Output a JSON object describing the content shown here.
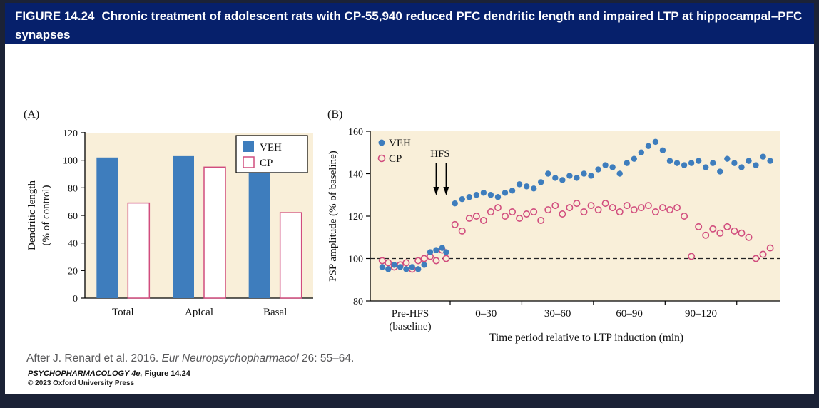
{
  "title_bar": {
    "figure_label": "FIGURE 14.24",
    "title_text": "Chronic treatment of adolescent rats with CP-55,940 reduced PFC dendritic length and impaired LTP at hippocampal–PFC synapses"
  },
  "panels": {
    "a_label": "(A)",
    "b_label": "(B)"
  },
  "caption": {
    "prefix": "After J. Renard et al. 2016. ",
    "journal": "Eur Neuropsychopharmacol",
    "suffix": " 26: 55–64."
  },
  "credit": {
    "book": "PSYCHOPHARMACOLOGY 4e,",
    "figure_ref": " Figure 14.24",
    "copyright": "© 2023 Oxford University Press"
  },
  "colors": {
    "veh": "#3e7dbd",
    "cp": "#d14d7e",
    "plot_bg": "#f9efd9",
    "titlebar_bg": "#06206b",
    "frame_bg": "#1b2236",
    "dashed_line": "#222222"
  },
  "chart_data": [
    {
      "type": "bar",
      "title": "",
      "categories": [
        "Total",
        "Apical",
        "Basal"
      ],
      "series": [
        {
          "name": "VEH",
          "style": "filled",
          "values": [
            102,
            103,
            104
          ]
        },
        {
          "name": "CP",
          "style": "open",
          "values": [
            69,
            95,
            62
          ]
        }
      ],
      "ylabel": [
        "Dendritic length",
        "(% of control)"
      ],
      "ylim": [
        0,
        120
      ],
      "yticks": [
        0,
        20,
        40,
        60,
        80,
        100,
        120
      ],
      "legend_position": "top-right",
      "grid": false
    },
    {
      "type": "scatter",
      "title": "",
      "xlabel": "Time period relative to LTP induction (min)",
      "ylabel": "PSP amplitude (% of baseline)",
      "ylim": [
        80,
        160
      ],
      "yticks": [
        80,
        100,
        120,
        140,
        160
      ],
      "baseline_line": 100,
      "legend_position": "top-left",
      "annotation": {
        "text": "HFS",
        "arrow_ts": [
          -7,
          -2
        ]
      },
      "x_ticks_t": [
        0,
        30,
        60,
        90,
        120
      ],
      "x_sections": [
        {
          "lines": [
            "Pre-HFS",
            "(baseline)"
          ],
          "t": -20
        },
        {
          "lines": [
            "0–30"
          ],
          "t": 15
        },
        {
          "lines": [
            "30–60"
          ],
          "t": 45
        },
        {
          "lines": [
            "60–90"
          ],
          "t": 75
        },
        {
          "lines": [
            "90–120"
          ],
          "t": 105
        }
      ],
      "series": [
        {
          "name": "VEH",
          "marker": "filled-circle",
          "points": [
            [
              -34,
              96
            ],
            [
              -31,
              95
            ],
            [
              -28,
              97
            ],
            [
              -25,
              96
            ],
            [
              -22,
              95
            ],
            [
              -19,
              96
            ],
            [
              -16,
              95
            ],
            [
              -13,
              97
            ],
            [
              -10,
              103
            ],
            [
              -7,
              104
            ],
            [
              -4,
              105
            ],
            [
              -2,
              103
            ],
            [
              2,
              126
            ],
            [
              5,
              128
            ],
            [
              8,
              129
            ],
            [
              11,
              130
            ],
            [
              14,
              131
            ],
            [
              17,
              130
            ],
            [
              20,
              129
            ],
            [
              23,
              131
            ],
            [
              26,
              132
            ],
            [
              29,
              135
            ],
            [
              32,
              134
            ],
            [
              35,
              133
            ],
            [
              38,
              136
            ],
            [
              41,
              140
            ],
            [
              44,
              138
            ],
            [
              47,
              137
            ],
            [
              50,
              139
            ],
            [
              53,
              138
            ],
            [
              56,
              140
            ],
            [
              59,
              139
            ],
            [
              62,
              142
            ],
            [
              65,
              144
            ],
            [
              68,
              143
            ],
            [
              71,
              140
            ],
            [
              74,
              145
            ],
            [
              77,
              147
            ],
            [
              80,
              150
            ],
            [
              83,
              153
            ],
            [
              86,
              155
            ],
            [
              89,
              151
            ],
            [
              92,
              146
            ],
            [
              95,
              145
            ],
            [
              98,
              144
            ],
            [
              101,
              145
            ],
            [
              104,
              146
            ],
            [
              107,
              143
            ],
            [
              110,
              145
            ],
            [
              113,
              141
            ],
            [
              116,
              147
            ],
            [
              119,
              145
            ],
            [
              122,
              143
            ],
            [
              125,
              146
            ],
            [
              128,
              144
            ],
            [
              131,
              148
            ],
            [
              134,
              146
            ]
          ]
        },
        {
          "name": "CP",
          "marker": "open-circle",
          "points": [
            [
              -34,
              99
            ],
            [
              -31,
              98
            ],
            [
              -28,
              96
            ],
            [
              -25,
              97
            ],
            [
              -22,
              98
            ],
            [
              -19,
              95
            ],
            [
              -16,
              99
            ],
            [
              -13,
              100
            ],
            [
              -10,
              101
            ],
            [
              -7,
              99
            ],
            [
              -4,
              104
            ],
            [
              -2,
              100
            ],
            [
              2,
              116
            ],
            [
              5,
              113
            ],
            [
              8,
              119
            ],
            [
              11,
              120
            ],
            [
              14,
              118
            ],
            [
              17,
              122
            ],
            [
              20,
              124
            ],
            [
              23,
              120
            ],
            [
              26,
              122
            ],
            [
              29,
              119
            ],
            [
              32,
              121
            ],
            [
              35,
              122
            ],
            [
              38,
              118
            ],
            [
              41,
              123
            ],
            [
              44,
              125
            ],
            [
              47,
              121
            ],
            [
              50,
              124
            ],
            [
              53,
              126
            ],
            [
              56,
              122
            ],
            [
              59,
              125
            ],
            [
              62,
              123
            ],
            [
              65,
              126
            ],
            [
              68,
              124
            ],
            [
              71,
              122
            ],
            [
              74,
              125
            ],
            [
              77,
              123
            ],
            [
              80,
              124
            ],
            [
              83,
              125
            ],
            [
              86,
              122
            ],
            [
              89,
              124
            ],
            [
              92,
              123
            ],
            [
              95,
              124
            ],
            [
              98,
              120
            ],
            [
              101,
              101
            ],
            [
              104,
              115
            ],
            [
              107,
              111
            ],
            [
              110,
              114
            ],
            [
              113,
              112
            ],
            [
              116,
              115
            ],
            [
              119,
              113
            ],
            [
              122,
              112
            ],
            [
              125,
              110
            ],
            [
              128,
              100
            ],
            [
              131,
              102
            ],
            [
              134,
              105
            ]
          ]
        }
      ]
    }
  ]
}
